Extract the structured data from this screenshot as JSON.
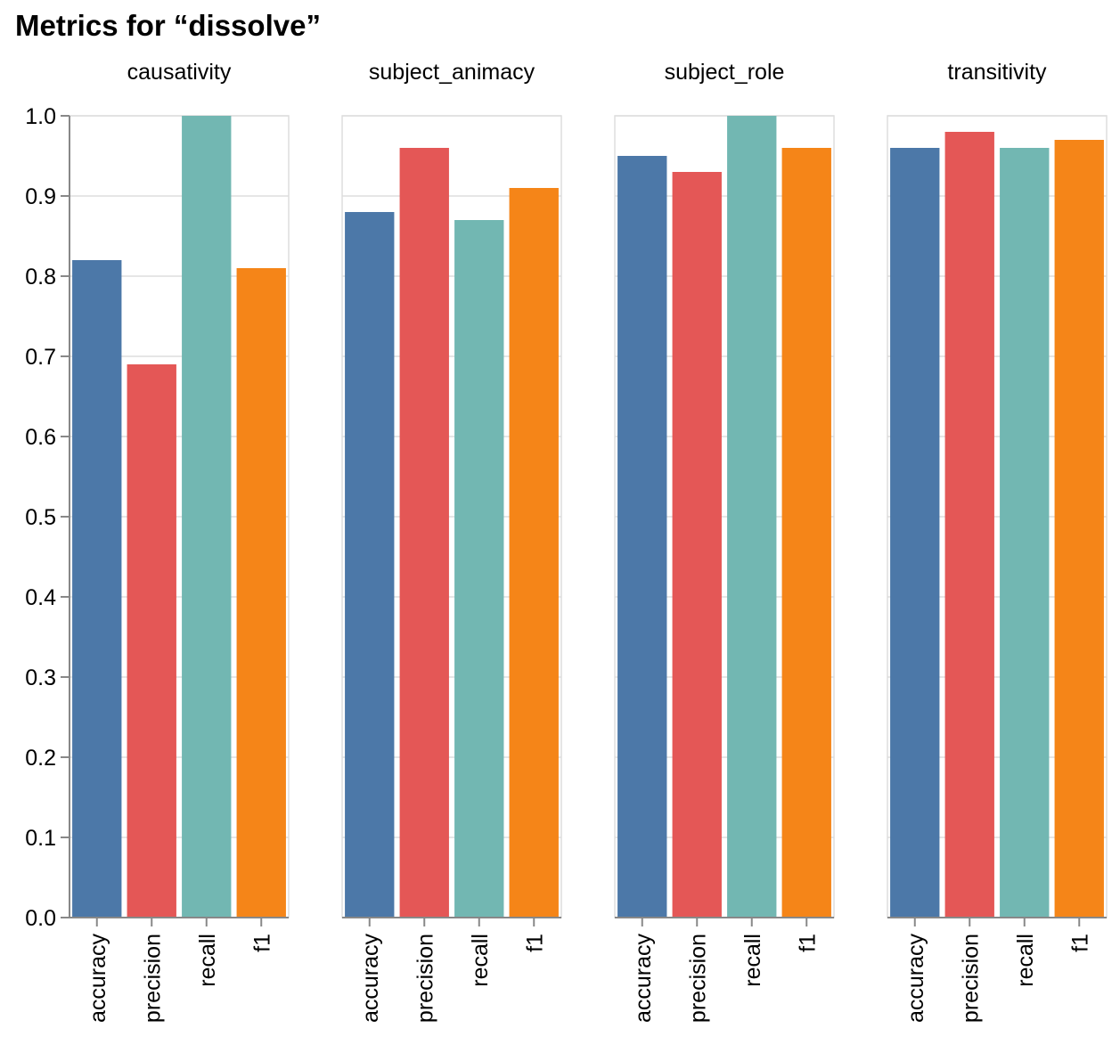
{
  "chart_data": {
    "type": "bar",
    "title": "Metrics for “dissolve”",
    "categories": [
      "accuracy",
      "precision",
      "recall",
      "f1"
    ],
    "colors": {
      "accuracy": "#4c78a8",
      "precision": "#e45756",
      "recall": "#72b7b2",
      "f1": "#f58518"
    },
    "ylim": [
      0,
      1.0
    ],
    "yticks": [
      "0.0",
      "0.1",
      "0.2",
      "0.3",
      "0.4",
      "0.5",
      "0.6",
      "0.7",
      "0.8",
      "0.9",
      "1.0"
    ],
    "grid": true,
    "facets": [
      {
        "name": "causativity",
        "values": [
          0.82,
          0.69,
          1.0,
          0.81
        ]
      },
      {
        "name": "subject_animacy",
        "values": [
          0.88,
          0.96,
          0.87,
          0.91
        ]
      },
      {
        "name": "subject_role",
        "values": [
          0.95,
          0.93,
          1.0,
          0.96
        ]
      },
      {
        "name": "transitivity",
        "values": [
          0.96,
          0.98,
          0.96,
          0.97
        ]
      }
    ]
  }
}
